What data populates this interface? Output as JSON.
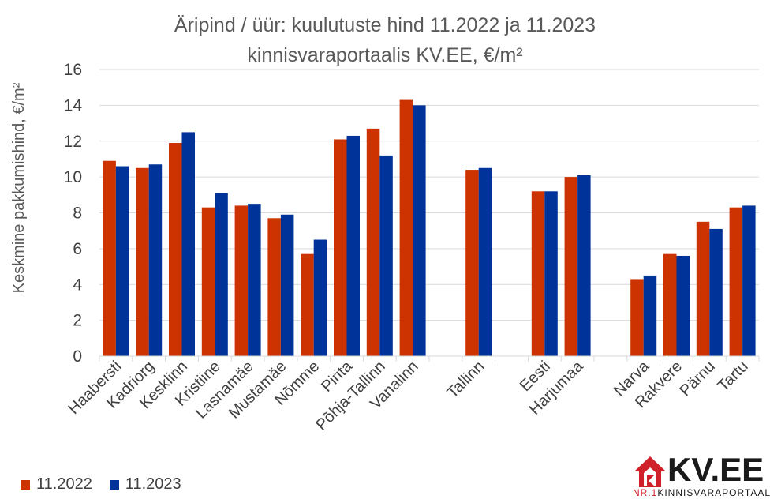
{
  "chart_data": {
    "type": "bar",
    "title": [
      "Äripind / üür: kuulutuste hind 11.2022 ja 11.2023",
      "kinnisvaraportaalis KV.EE, €/m²"
    ],
    "ylabel": "Keskmine pakkumishind, €/m²",
    "xlabel": "",
    "ylim": [
      0,
      16
    ],
    "yticks": [
      0,
      2,
      4,
      6,
      8,
      10,
      12,
      14,
      16
    ],
    "grid": true,
    "legend_position": "bottom-left",
    "categories": [
      "Haabersti",
      "Kadriorg",
      "Kesklinn",
      "Kristiine",
      "Lasnamäe",
      "Mustamäe",
      "Nõmme",
      "Pirita",
      "Põhja-Tallinn",
      "Vanalinn",
      "",
      "Tallinn",
      "",
      "Eesti",
      "Harjumaa",
      "",
      "Narva",
      "Rakvere",
      "Pärnu",
      "Tartu"
    ],
    "series": [
      {
        "name": "11.2022",
        "color": "#cc3300",
        "values": [
          10.9,
          10.5,
          11.9,
          8.3,
          8.4,
          7.7,
          5.7,
          12.1,
          12.7,
          14.3,
          null,
          10.4,
          null,
          9.2,
          10.0,
          null,
          4.3,
          5.7,
          7.5,
          8.3
        ]
      },
      {
        "name": "11.2023",
        "color": "#003399",
        "values": [
          10.6,
          10.7,
          12.5,
          9.1,
          8.5,
          7.9,
          6.5,
          12.3,
          11.2,
          14.0,
          null,
          10.5,
          null,
          9.2,
          10.1,
          null,
          4.5,
          5.6,
          7.1,
          8.4
        ]
      }
    ]
  },
  "logo": {
    "text": "KV.EE",
    "sub_prefix": "NR.1",
    "sub_text": "KINNISVARAPORTAAL"
  }
}
